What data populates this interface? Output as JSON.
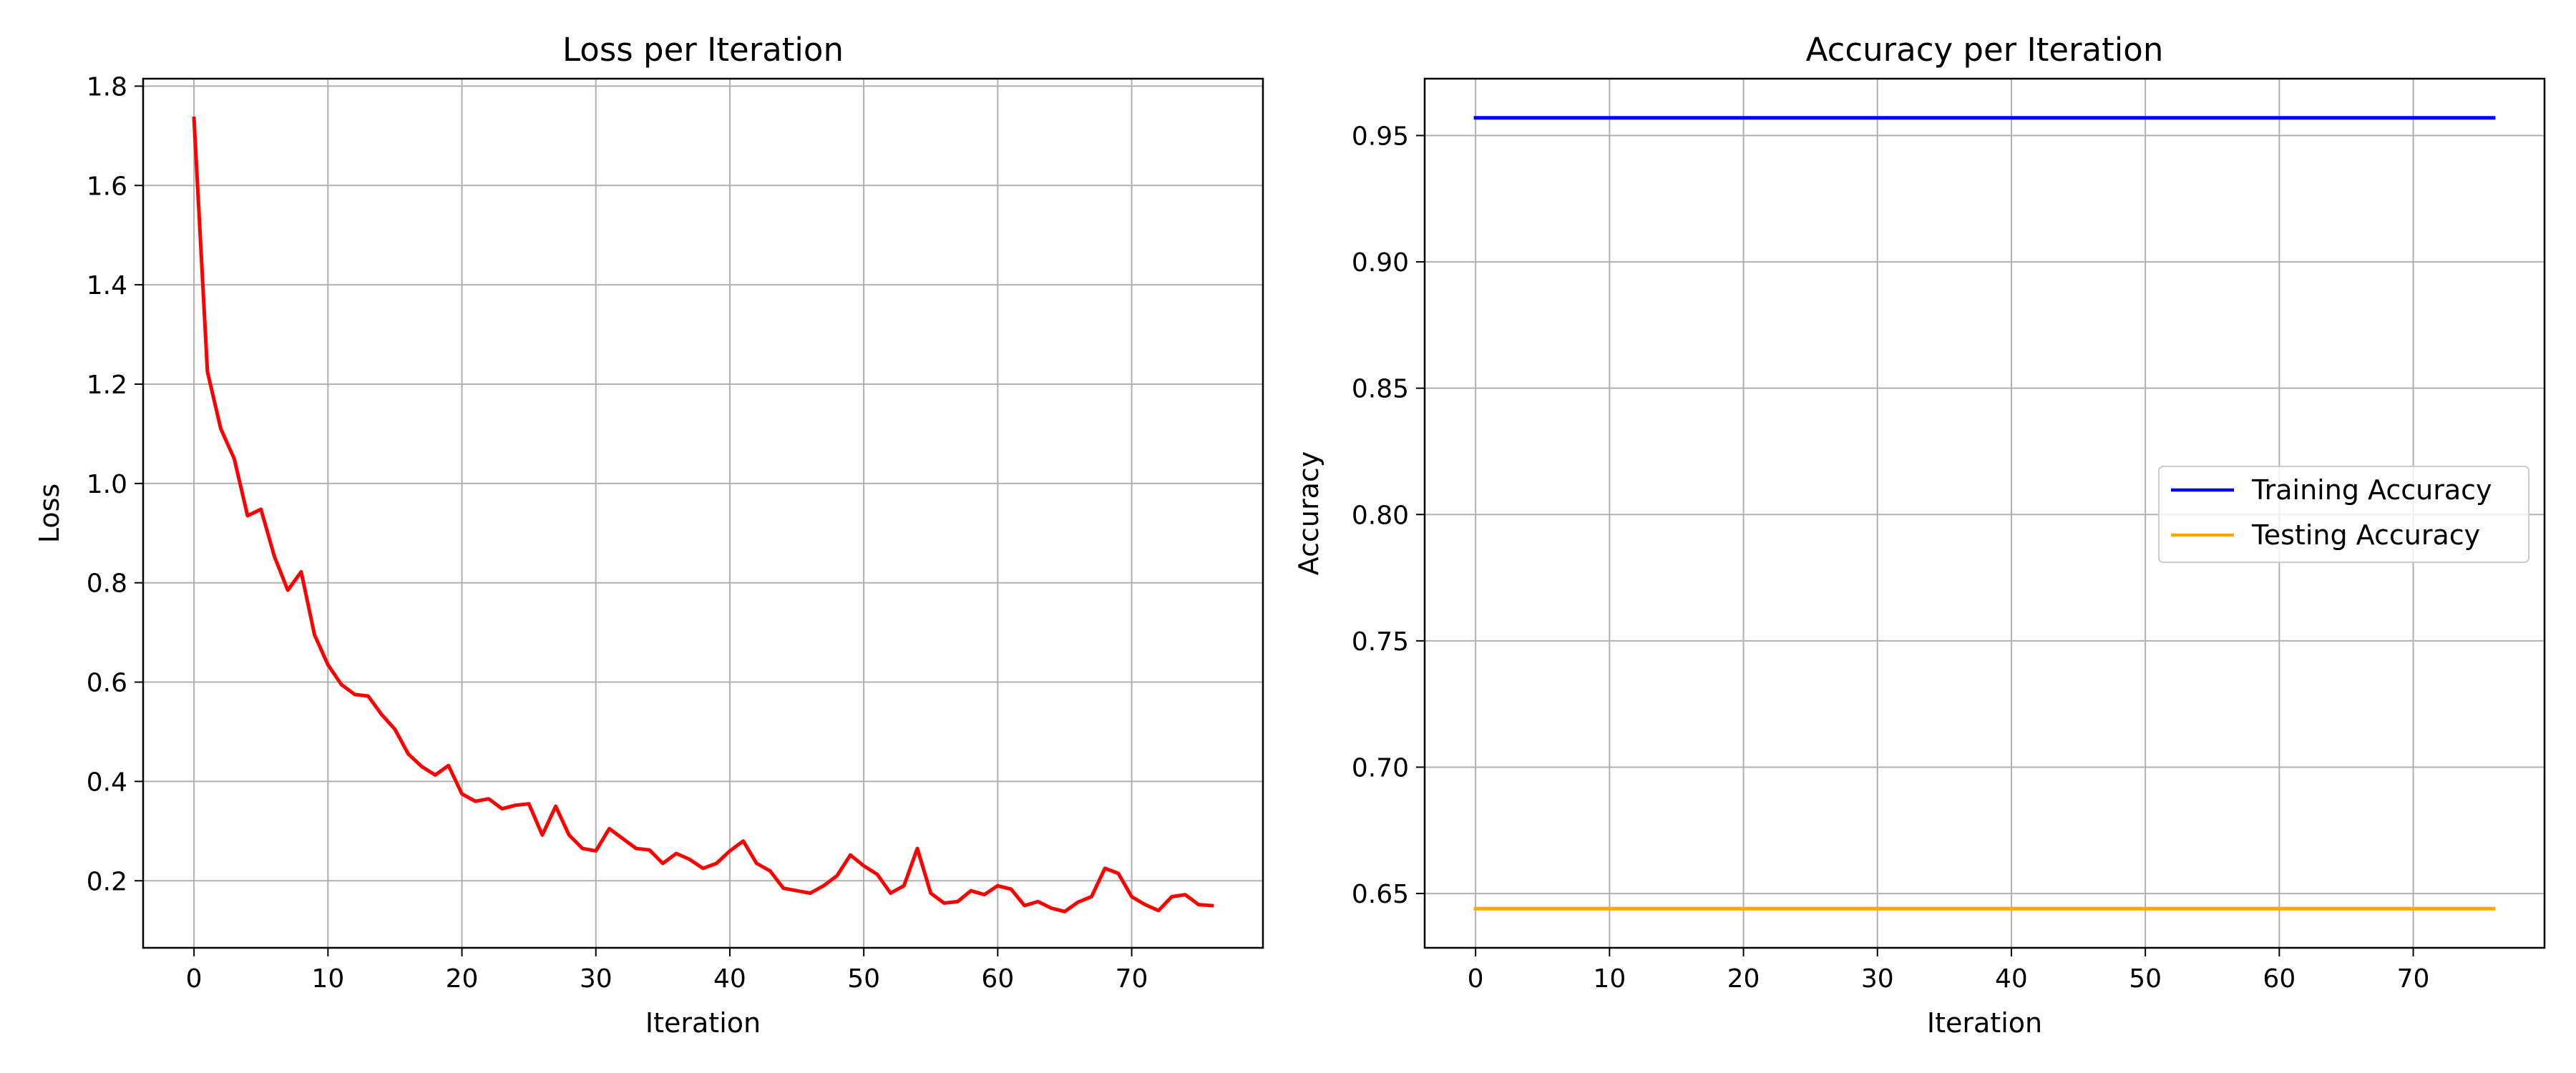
{
  "chart_data": [
    {
      "type": "line",
      "title": "Loss per Iteration",
      "xlabel": "Iteration",
      "ylabel": "Loss",
      "xlim": [
        -3.8,
        79.8
      ],
      "ylim": [
        0.065,
        1.815
      ],
      "xticks": [
        0,
        10,
        20,
        30,
        40,
        50,
        60,
        70
      ],
      "yticks": [
        0.2,
        0.4,
        0.6,
        0.8,
        1.0,
        1.2,
        1.4,
        1.6,
        1.8
      ],
      "ytick_labels": [
        "0.2",
        "0.4",
        "0.6",
        "0.8",
        "1.0",
        "1.2",
        "1.4",
        "1.6",
        "1.8"
      ],
      "grid": true,
      "legend": null,
      "series": [
        {
          "color": "#ff0000",
          "x": [
            0,
            1,
            2,
            3,
            4,
            5,
            6,
            7,
            8,
            9,
            10,
            11,
            12,
            13,
            14,
            15,
            16,
            17,
            18,
            19,
            20,
            21,
            22,
            23,
            24,
            25,
            26,
            27,
            28,
            29,
            30,
            31,
            32,
            33,
            34,
            35,
            36,
            37,
            38,
            39,
            40,
            41,
            42,
            43,
            44,
            45,
            46,
            47,
            48,
            49,
            50,
            51,
            52,
            53,
            54,
            55,
            56,
            57,
            58,
            59,
            60,
            61,
            62,
            63,
            64,
            65,
            66,
            67,
            68,
            69,
            70,
            71,
            72,
            73,
            74,
            75,
            76
          ],
          "values": [
            1.735,
            1.225,
            1.11,
            1.05,
            0.935,
            0.948,
            0.853,
            0.785,
            0.822,
            0.695,
            0.635,
            0.595,
            0.575,
            0.572,
            0.535,
            0.505,
            0.455,
            0.43,
            0.413,
            0.432,
            0.375,
            0.36,
            0.365,
            0.345,
            0.352,
            0.355,
            0.292,
            0.35,
            0.292,
            0.265,
            0.26,
            0.305,
            0.285,
            0.265,
            0.262,
            0.235,
            0.255,
            0.243,
            0.225,
            0.235,
            0.26,
            0.28,
            0.235,
            0.22,
            0.185,
            0.18,
            0.175,
            0.19,
            0.21,
            0.252,
            0.23,
            0.213,
            0.175,
            0.19,
            0.265,
            0.175,
            0.155,
            0.158,
            0.18,
            0.172,
            0.19,
            0.183,
            0.15,
            0.158,
            0.145,
            0.138,
            0.157,
            0.168,
            0.225,
            0.215,
            0.168,
            0.152,
            0.14,
            0.168,
            0.172,
            0.152,
            0.15
          ]
        }
      ]
    },
    {
      "type": "line",
      "title": "Accuracy per Iteration",
      "xlabel": "Iteration",
      "ylabel": "Accuracy",
      "xlim": [
        -3.8,
        79.8
      ],
      "ylim": [
        0.6285,
        0.9725
      ],
      "xticks": [
        0,
        10,
        20,
        30,
        40,
        50,
        60,
        70
      ],
      "yticks": [
        0.65,
        0.7,
        0.75,
        0.8,
        0.85,
        0.9,
        0.95
      ],
      "ytick_labels": [
        "0.65",
        "0.70",
        "0.75",
        "0.80",
        "0.85",
        "0.90",
        "0.95"
      ],
      "grid": true,
      "legend": "center-right",
      "series": [
        {
          "name": "Training Accuracy",
          "color": "#0000ff",
          "x": [
            0,
            76
          ],
          "values": [
            0.957,
            0.957
          ]
        },
        {
          "name": "Testing Accuracy",
          "color": "#ffa500",
          "x": [
            0,
            76
          ],
          "values": [
            0.644,
            0.644
          ]
        }
      ]
    }
  ]
}
